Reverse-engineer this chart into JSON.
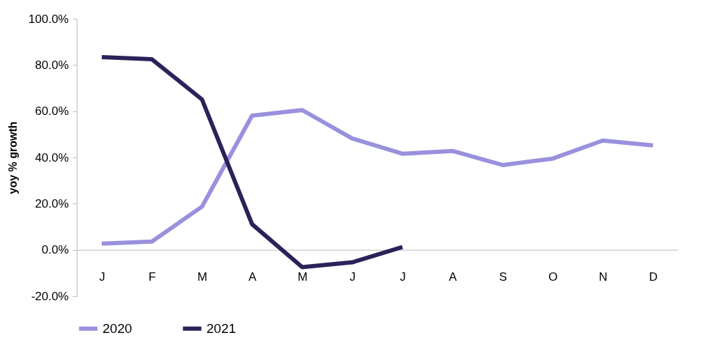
{
  "chart_data": {
    "type": "line",
    "ylabel": "yoy % growth",
    "categories": [
      "J",
      "F",
      "M",
      "A",
      "M",
      "J",
      "J",
      "A",
      "S",
      "O",
      "N",
      "D"
    ],
    "series": [
      {
        "name": "2020",
        "color": "#9991dd",
        "values": [
          2.7,
          3.6,
          18.7,
          58.1,
          60.5,
          48.2,
          41.6,
          42.8,
          36.7,
          39.5,
          47.3,
          45.2
        ]
      },
      {
        "name": "2021",
        "color": "#2a2359",
        "values": [
          83.4,
          82.5,
          65.1,
          11.1,
          -7.5,
          -5.4,
          1.2,
          null,
          null,
          null,
          null,
          null
        ]
      }
    ],
    "ylim": [
      -20,
      100
    ],
    "yticks": [
      {
        "value": -20,
        "label": "-20.0%"
      },
      {
        "value": 0,
        "label": "0.0%"
      },
      {
        "value": 20,
        "label": "20.0%"
      },
      {
        "value": 40,
        "label": "40.0%"
      },
      {
        "value": 60,
        "label": "60.0%"
      },
      {
        "value": 80,
        "label": "80.0%"
      },
      {
        "value": 100,
        "label": "100.0%"
      }
    ],
    "grid": false,
    "legend": "bottom",
    "line_style": "solid",
    "marker": "none"
  }
}
